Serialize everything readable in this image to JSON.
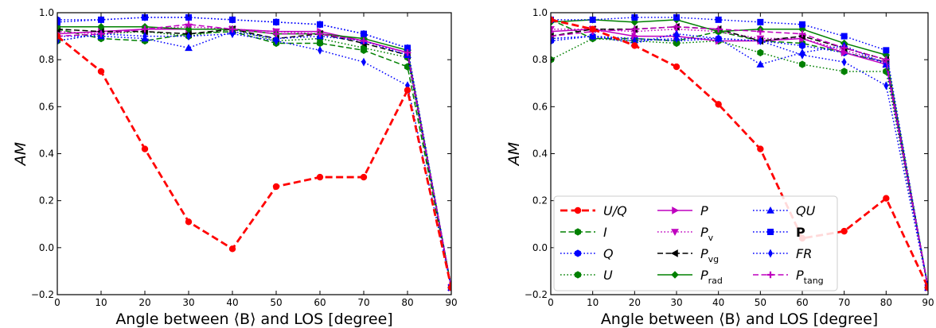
{
  "chart_data": [
    {
      "type": "line",
      "xlabel": "Angle between ⟨B⟩ and LOS [degree]",
      "ylabel": "AM",
      "xlim": [
        0,
        90
      ],
      "ylim": [
        -0.2,
        1.0
      ],
      "x_ticks": [
        0,
        10,
        20,
        30,
        40,
        50,
        60,
        70,
        80,
        90
      ],
      "y_ticks": [
        -0.2,
        0.0,
        0.2,
        0.4,
        0.6,
        0.8,
        1.0
      ],
      "x": [
        0,
        10,
        20,
        30,
        40,
        50,
        60,
        70,
        80,
        90
      ],
      "legend": "none",
      "series": [
        {
          "name": "U/Q",
          "color": "#ff0000",
          "style": "dashed",
          "marker": "circle",
          "values": [
            0.9,
            0.75,
            0.42,
            0.11,
            -0.005,
            0.26,
            0.3,
            0.3,
            0.67,
            -0.17
          ]
        },
        {
          "name": "I",
          "color": "#008000",
          "style": "dashed",
          "marker": "hexagon",
          "values": [
            0.93,
            0.89,
            0.88,
            0.91,
            0.92,
            0.87,
            0.87,
            0.84,
            0.77,
            -0.17
          ]
        },
        {
          "name": "Q",
          "color": "#0000ff",
          "style": "dotted",
          "marker": "hexagon",
          "values": [
            0.97,
            0.97,
            0.98,
            0.98,
            0.97,
            0.96,
            0.95,
            0.91,
            0.85,
            -0.17
          ]
        },
        {
          "name": "U",
          "color": "#008000",
          "style": "dotted",
          "marker": "hexagon",
          "values": [
            0.88,
            0.91,
            0.92,
            0.9,
            0.93,
            0.88,
            0.89,
            0.85,
            0.81,
            -0.17
          ]
        },
        {
          "name": "P",
          "color": "#bf00bf",
          "style": "solid",
          "marker": "triangle-right",
          "values": [
            0.91,
            0.92,
            0.93,
            0.93,
            0.93,
            0.92,
            0.92,
            0.88,
            0.83,
            -0.17
          ]
        },
        {
          "name": "P_v",
          "color": "#bf00bf",
          "style": "dotted",
          "marker": "triangle-down",
          "values": [
            0.92,
            0.91,
            0.93,
            0.94,
            0.93,
            0.92,
            0.91,
            0.88,
            0.83,
            -0.17
          ]
        },
        {
          "name": "P_vg",
          "color": "#000000",
          "style": "dashed",
          "marker": "triangle-left",
          "values": [
            0.93,
            0.92,
            0.92,
            0.91,
            0.93,
            0.89,
            0.91,
            0.87,
            0.82,
            -0.17
          ]
        },
        {
          "name": "P_rad",
          "color": "#008000",
          "style": "solid",
          "marker": "diamond",
          "values": [
            0.94,
            0.94,
            0.94,
            0.93,
            0.93,
            0.91,
            0.91,
            0.89,
            0.84,
            -0.17
          ]
        },
        {
          "name": "QU",
          "color": "#0000ff",
          "style": "dotted",
          "marker": "triangle-up",
          "values": [
            0.9,
            0.9,
            0.89,
            0.85,
            0.92,
            0.89,
            0.9,
            0.88,
            0.82,
            -0.17
          ]
        },
        {
          "name": "P",
          "color": "#0000ff",
          "style": "dotted",
          "marker": "square",
          "values": [
            0.96,
            0.97,
            0.98,
            0.98,
            0.97,
            0.96,
            0.95,
            0.91,
            0.85,
            -0.17
          ]
        },
        {
          "name": "FR",
          "color": "#0000ff",
          "style": "dotted",
          "marker": "thin-diamond",
          "values": [
            0.88,
            0.91,
            0.9,
            0.9,
            0.91,
            0.88,
            0.84,
            0.79,
            0.69,
            -0.17
          ]
        },
        {
          "name": "P_tang",
          "color": "#bf00bf",
          "style": "dashed",
          "marker": "plus",
          "values": [
            0.9,
            0.91,
            0.93,
            0.95,
            0.93,
            0.91,
            0.91,
            0.88,
            0.83,
            -0.17
          ]
        }
      ]
    },
    {
      "type": "line",
      "xlabel": "Angle between ⟨B⟩ and LOS [degree]",
      "ylabel": "AM",
      "xlim": [
        0,
        90
      ],
      "ylim": [
        -0.2,
        1.0
      ],
      "x_ticks": [
        0,
        10,
        20,
        30,
        40,
        50,
        60,
        70,
        80,
        90
      ],
      "y_ticks": [
        -0.2,
        0.0,
        0.2,
        0.4,
        0.6,
        0.8,
        1.0
      ],
      "x": [
        0,
        10,
        20,
        30,
        40,
        50,
        60,
        70,
        80,
        90
      ],
      "legend": "lower-left",
      "series": [
        {
          "name": "U/Q",
          "color": "#ff0000",
          "style": "dashed",
          "marker": "circle",
          "values": [
            0.97,
            0.93,
            0.86,
            0.77,
            0.61,
            0.42,
            0.04,
            0.07,
            0.21,
            -0.17
          ]
        },
        {
          "name": "I",
          "color": "#008000",
          "style": "dashed",
          "marker": "hexagon",
          "values": [
            0.97,
            0.89,
            0.89,
            0.88,
            0.92,
            0.88,
            0.87,
            0.83,
            0.79,
            -0.17
          ]
        },
        {
          "name": "Q",
          "color": "#0000ff",
          "style": "dotted",
          "marker": "hexagon",
          "values": [
            0.88,
            0.9,
            0.89,
            0.88,
            0.89,
            0.88,
            0.86,
            0.83,
            0.79,
            -0.17
          ]
        },
        {
          "name": "U",
          "color": "#008000",
          "style": "dotted",
          "marker": "hexagon",
          "values": [
            0.8,
            0.89,
            0.88,
            0.87,
            0.88,
            0.83,
            0.78,
            0.75,
            0.75,
            -0.17
          ]
        },
        {
          "name": "P",
          "color": "#bf00bf",
          "style": "solid",
          "marker": "triangle-right",
          "values": [
            0.92,
            0.93,
            0.9,
            0.9,
            0.88,
            0.88,
            0.89,
            0.83,
            0.78,
            -0.17
          ]
        },
        {
          "name": "P_v",
          "color": "#bf00bf",
          "style": "dotted",
          "marker": "triangle-down",
          "values": [
            0.93,
            0.93,
            0.92,
            0.93,
            0.92,
            0.89,
            0.89,
            0.84,
            0.79,
            -0.17
          ]
        },
        {
          "name": "P_vg",
          "color": "#000000",
          "style": "dashed",
          "marker": "triangle-left",
          "values": [
            0.9,
            0.93,
            0.93,
            0.94,
            0.93,
            0.88,
            0.9,
            0.85,
            0.8,
            -0.17
          ]
        },
        {
          "name": "P_rad",
          "color": "#008000",
          "style": "solid",
          "marker": "diamond",
          "values": [
            0.96,
            0.97,
            0.96,
            0.97,
            0.92,
            0.93,
            0.93,
            0.87,
            0.82,
            -0.17
          ]
        },
        {
          "name": "QU",
          "color": "#0000ff",
          "style": "dotted",
          "marker": "triangle-up",
          "values": [
            0.89,
            0.9,
            0.87,
            0.91,
            0.89,
            0.78,
            0.83,
            0.86,
            0.78,
            -0.17
          ]
        },
        {
          "name": "P",
          "color": "#0000ff",
          "style": "dotted",
          "marker": "square",
          "values": [
            0.97,
            0.97,
            0.98,
            0.98,
            0.97,
            0.96,
            0.95,
            0.9,
            0.84,
            -0.17
          ]
        },
        {
          "name": "FR",
          "color": "#0000ff",
          "style": "dotted",
          "marker": "thin-diamond",
          "values": [
            0.89,
            0.9,
            0.88,
            0.89,
            0.89,
            0.88,
            0.82,
            0.79,
            0.69,
            -0.17
          ]
        },
        {
          "name": "P_tang",
          "color": "#bf00bf",
          "style": "dashed",
          "marker": "plus",
          "values": [
            0.9,
            0.92,
            0.93,
            0.94,
            0.93,
            0.92,
            0.91,
            0.85,
            0.8,
            -0.17
          ]
        }
      ]
    }
  ]
}
